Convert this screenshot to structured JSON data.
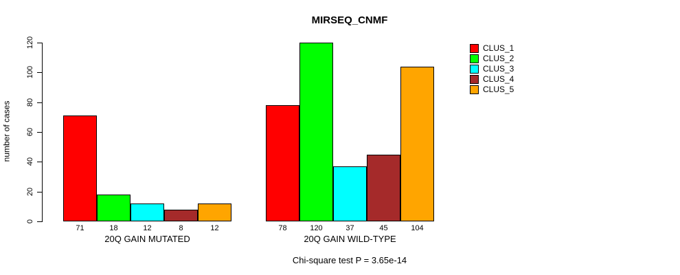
{
  "page": {
    "background_color": "#FFFFFF",
    "text_color": "#000000"
  },
  "chart_data": {
    "type": "bar",
    "title": "MIRSEQ_CNMF",
    "ylabel": "number of cases",
    "xlabel": "",
    "categories": [
      "20Q GAIN MUTATED",
      "20Q GAIN WILD-TYPE"
    ],
    "series": [
      {
        "name": "CLUS_1",
        "color": "#FF0000",
        "values": [
          71,
          78
        ]
      },
      {
        "name": "CLUS_2",
        "color": "#00FF00",
        "values": [
          18,
          120
        ]
      },
      {
        "name": "CLUS_3",
        "color": "#00FFFF",
        "values": [
          12,
          37
        ]
      },
      {
        "name": "CLUS_4",
        "color": "#A52A2A",
        "values": [
          8,
          45
        ]
      },
      {
        "name": "CLUS_5",
        "color": "#FFA500",
        "values": [
          12,
          104
        ]
      }
    ],
    "yticks": [
      0,
      20,
      40,
      60,
      80,
      100,
      120
    ],
    "ylim": [
      0,
      120
    ],
    "grid": false,
    "show_bar_values": true,
    "legend_position": "top-right",
    "annotation": "Chi-square test P = 3.65e-14"
  }
}
